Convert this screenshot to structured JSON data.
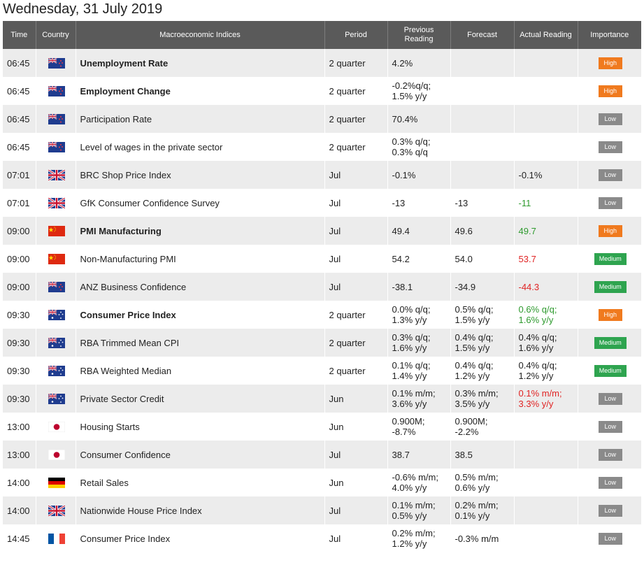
{
  "page": {
    "title": "Wednesday, 31 July 2019"
  },
  "columns": {
    "time": "Time",
    "country": "Country",
    "index": "Macroeconomic Indices",
    "period": "Period",
    "previous_line1": "Previous",
    "previous_line2": "Reading",
    "forecast": "Forecast",
    "actual": "Actual Reading",
    "importance": "Importance"
  },
  "rows": [
    {
      "time": "06:45",
      "flag": "nz-flag-icon",
      "index": "Unemployment Rate",
      "bold": true,
      "period": "2 quarter",
      "prev": [
        "4.2%"
      ],
      "forecast": [],
      "actual": [],
      "actual_color": "",
      "importance": "High"
    },
    {
      "time": "06:45",
      "flag": "nz-flag-icon",
      "index": "Employment Change",
      "bold": true,
      "period": "2 quarter",
      "prev": [
        "-0.2%q/q;",
        "1.5% y/y"
      ],
      "forecast": [],
      "actual": [],
      "actual_color": "",
      "importance": "High"
    },
    {
      "time": "06:45",
      "flag": "nz-flag-icon",
      "index": "Participation Rate",
      "bold": false,
      "period": "2 quarter",
      "prev": [
        "70.4%"
      ],
      "forecast": [],
      "actual": [],
      "actual_color": "",
      "importance": "Low"
    },
    {
      "time": "06:45",
      "flag": "nz-flag-icon",
      "index": "Level of wages in the private sector",
      "bold": false,
      "period": "2 quarter",
      "prev": [
        "0.3% q/q;",
        "0.3% q/q"
      ],
      "forecast": [],
      "actual": [],
      "actual_color": "",
      "importance": "Low"
    },
    {
      "time": "07:01",
      "flag": "uk-flag-icon",
      "index": "BRC Shop Price Index",
      "bold": false,
      "period": "Jul",
      "prev": [
        "-0.1%"
      ],
      "forecast": [],
      "actual": [
        "-0.1%"
      ],
      "actual_color": "",
      "importance": "Low"
    },
    {
      "time": "07:01",
      "flag": "uk-flag-icon",
      "index": "GfK Consumer Confidence Survey",
      "bold": false,
      "period": "Jul",
      "prev": [
        "-13"
      ],
      "forecast": [
        "-13"
      ],
      "actual": [
        "-11"
      ],
      "actual_color": "green",
      "importance": "Low"
    },
    {
      "time": "09:00",
      "flag": "china-flag-icon",
      "index": "PMI Manufacturing",
      "bold": true,
      "period": "Jul",
      "prev": [
        "49.4"
      ],
      "forecast": [
        "49.6"
      ],
      "actual": [
        "49.7"
      ],
      "actual_color": "green",
      "importance": "High"
    },
    {
      "time": "09:00",
      "flag": "china-flag-icon",
      "index": "Non-Manufacturing PMI",
      "bold": false,
      "period": "Jul",
      "prev": [
        "54.2"
      ],
      "forecast": [
        "54.0"
      ],
      "actual": [
        "53.7"
      ],
      "actual_color": "red",
      "importance": "Medium"
    },
    {
      "time": "09:00",
      "flag": "nz-flag-icon",
      "index": "ANZ Business Confidence",
      "bold": false,
      "period": "Jul",
      "prev": [
        "-38.1"
      ],
      "forecast": [
        "-34.9"
      ],
      "actual": [
        "-44.3"
      ],
      "actual_color": "red",
      "importance": "Medium"
    },
    {
      "time": "09:30",
      "flag": "australia-flag-icon",
      "index": "Consumer Price Index",
      "bold": true,
      "period": "2 quarter",
      "prev": [
        "0.0% q/q;",
        "1.3% y/y"
      ],
      "forecast": [
        "0.5% q/q;",
        "1.5% y/y"
      ],
      "actual": [
        "0.6% q/q;",
        "1.6% y/y"
      ],
      "actual_color": "green",
      "importance": "High"
    },
    {
      "time": "09:30",
      "flag": "australia-flag-icon",
      "index": "RBA Trimmed Mean CPI",
      "bold": false,
      "period": "2 quarter",
      "prev": [
        "0.3% q/q;",
        "1.6% y/y"
      ],
      "forecast": [
        "0.4% q/q;",
        "1.5% y/y"
      ],
      "actual": [
        "0.4% q/q;",
        "1.6% y/y"
      ],
      "actual_color": "",
      "importance": "Medium"
    },
    {
      "time": "09:30",
      "flag": "australia-flag-icon",
      "index": "RBA Weighted Median",
      "bold": false,
      "period": "2 quarter",
      "prev": [
        "0.1% q/q;",
        "1.4% y/y"
      ],
      "forecast": [
        "0.4% q/q;",
        "1.2% y/y"
      ],
      "actual": [
        "0.4% q/q;",
        "1.2% y/y"
      ],
      "actual_color": "",
      "importance": "Medium"
    },
    {
      "time": "09:30",
      "flag": "australia-flag-icon",
      "index": "Private Sector Credit",
      "bold": false,
      "period": "Jun",
      "prev": [
        "0.1% m/m;",
        "3.6% y/y"
      ],
      "forecast": [
        "0.3% m/m;",
        "3.5% y/y"
      ],
      "actual": [
        "0.1% m/m;",
        "3.3% y/y"
      ],
      "actual_color": "red",
      "importance": "Low"
    },
    {
      "time": "13:00",
      "flag": "japan-flag-icon",
      "index": "Housing Starts",
      "bold": false,
      "period": "Jun",
      "prev": [
        "0.900M;",
        "-8.7%"
      ],
      "forecast": [
        "0.900M;",
        "-2.2%"
      ],
      "actual": [],
      "actual_color": "",
      "importance": "Low"
    },
    {
      "time": "13:00",
      "flag": "japan-flag-icon",
      "index": "Consumer Confidence",
      "bold": false,
      "period": "Jul",
      "prev": [
        "38.7"
      ],
      "forecast": [
        "38.5"
      ],
      "actual": [],
      "actual_color": "",
      "importance": "Low"
    },
    {
      "time": "14:00",
      "flag": "germany-flag-icon",
      "index": "Retail Sales",
      "bold": false,
      "period": "Jun",
      "prev": [
        "-0.6% m/m;",
        "4.0% y/y"
      ],
      "forecast": [
        "0.5% m/m;",
        "0.6% y/y"
      ],
      "actual": [],
      "actual_color": "",
      "importance": "Low"
    },
    {
      "time": "14:00",
      "flag": "uk-flag-icon",
      "index": "Nationwide House Price Index",
      "bold": false,
      "period": "Jul",
      "prev": [
        "0.1% m/m;",
        "0.5% y/y"
      ],
      "forecast": [
        "0.2% m/m;",
        "0.1% y/y"
      ],
      "actual": [],
      "actual_color": "",
      "importance": "Low"
    },
    {
      "time": "14:45",
      "flag": "france-flag-icon",
      "index": "Consumer Price Index",
      "bold": false,
      "period": "Jul",
      "prev": [
        "0.2% m/m;",
        "1.2% y/y"
      ],
      "forecast": [
        "-0.3% m/m"
      ],
      "actual": [],
      "actual_color": "",
      "importance": "Low"
    }
  ]
}
